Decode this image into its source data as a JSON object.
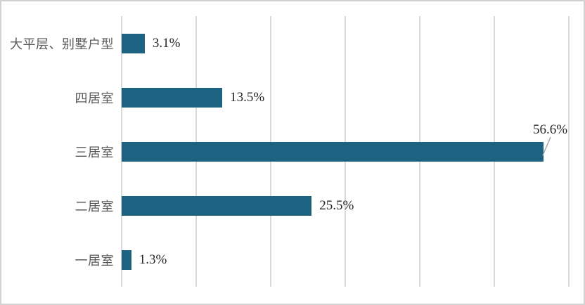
{
  "chart_data": {
    "type": "bar",
    "orientation": "horizontal",
    "title": "",
    "xlabel": "",
    "ylabel": "",
    "categories": [
      "大平层、别墅户型",
      "四居室",
      "三居室",
      "二居室",
      "一居室"
    ],
    "values": [
      3.1,
      13.5,
      56.6,
      25.5,
      1.3
    ],
    "value_labels": [
      "3.1%",
      "13.5%",
      "56.6%",
      "25.5%",
      "1.3%"
    ],
    "label_placement": [
      "right",
      "right",
      "above",
      "right",
      "right"
    ],
    "xlim": [
      0,
      60
    ],
    "gridline_step": 10,
    "grid": true,
    "legend": false,
    "colors": {
      "bar": "#1d6280",
      "gridline": "#d9d9d9",
      "category_label": "#595959",
      "value_label": "#262626",
      "leader_line": "#a6a6a6",
      "frame_border": "#d2d2d2",
      "background": "#ffffff"
    }
  }
}
